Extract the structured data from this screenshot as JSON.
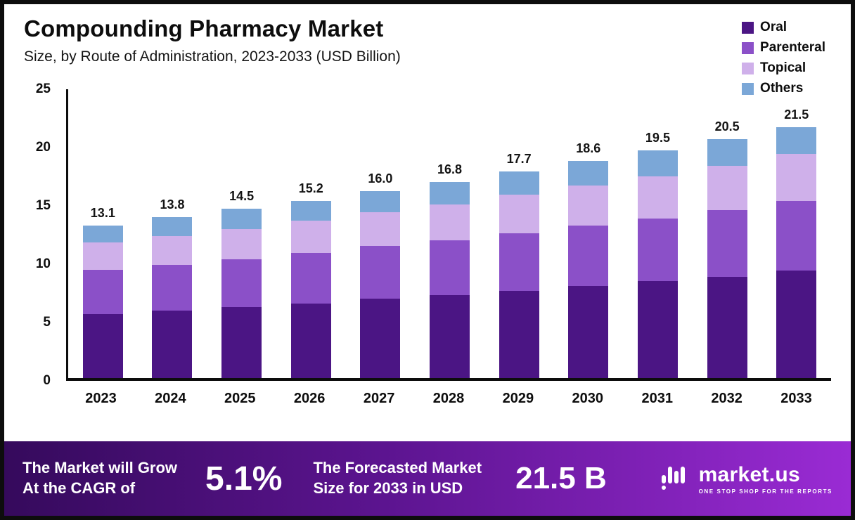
{
  "header": {
    "title": "Compounding Pharmacy Market",
    "subtitle": "Size, by Route of Administration, 2023-2033 (USD Billion)"
  },
  "legend": [
    {
      "label": "Oral",
      "color": "#4b1584"
    },
    {
      "label": "Parenteral",
      "color": "#8b50c8"
    },
    {
      "label": "Topical",
      "color": "#cfb0ea"
    },
    {
      "label": "Others",
      "color": "#7ba7d7"
    }
  ],
  "chart_data": {
    "type": "bar",
    "stacked": true,
    "title": "Compounding Pharmacy Market Size, by Route of Administration, 2023-2033 (USD Billion)",
    "categories": [
      "2023",
      "2024",
      "2025",
      "2026",
      "2027",
      "2028",
      "2029",
      "2030",
      "2031",
      "2032",
      "2033"
    ],
    "series": [
      {
        "name": "Oral",
        "color": "#4b1584",
        "values": [
          5.5,
          5.8,
          6.1,
          6.4,
          6.8,
          7.1,
          7.5,
          7.9,
          8.3,
          8.7,
          9.2
        ]
      },
      {
        "name": "Parenteral",
        "color": "#8b50c8",
        "values": [
          3.8,
          3.9,
          4.1,
          4.3,
          4.5,
          4.7,
          4.9,
          5.2,
          5.4,
          5.7,
          6.0
        ]
      },
      {
        "name": "Topical",
        "color": "#cfb0ea",
        "values": [
          2.3,
          2.5,
          2.6,
          2.8,
          2.9,
          3.1,
          3.3,
          3.4,
          3.6,
          3.8,
          4.0
        ]
      },
      {
        "name": "Others",
        "color": "#7ba7d7",
        "values": [
          1.5,
          1.6,
          1.7,
          1.7,
          1.8,
          1.9,
          2.0,
          2.1,
          2.2,
          2.3,
          2.3
        ]
      }
    ],
    "totals": [
      13.1,
      13.8,
      14.5,
      15.2,
      16.0,
      16.8,
      17.7,
      18.6,
      19.5,
      20.5,
      21.5
    ],
    "xlabel": "",
    "ylabel": "",
    "ylim": [
      0,
      25
    ],
    "yticks": [
      0,
      5,
      10,
      15,
      20,
      25
    ],
    "grid": false,
    "legend_position": "top-right",
    "value_labels": "total-above-bar"
  },
  "footer": {
    "growth_line1": "The Market will Grow",
    "growth_line2": "At the CAGR of",
    "cagr_value": "5.1%",
    "forecast_line1": "The Forecasted Market",
    "forecast_line2": "Size for 2033 in USD",
    "forecast_value": "21.5 B",
    "brand_name": "market.us",
    "brand_tagline": "ONE STOP SHOP FOR THE REPORTS"
  }
}
